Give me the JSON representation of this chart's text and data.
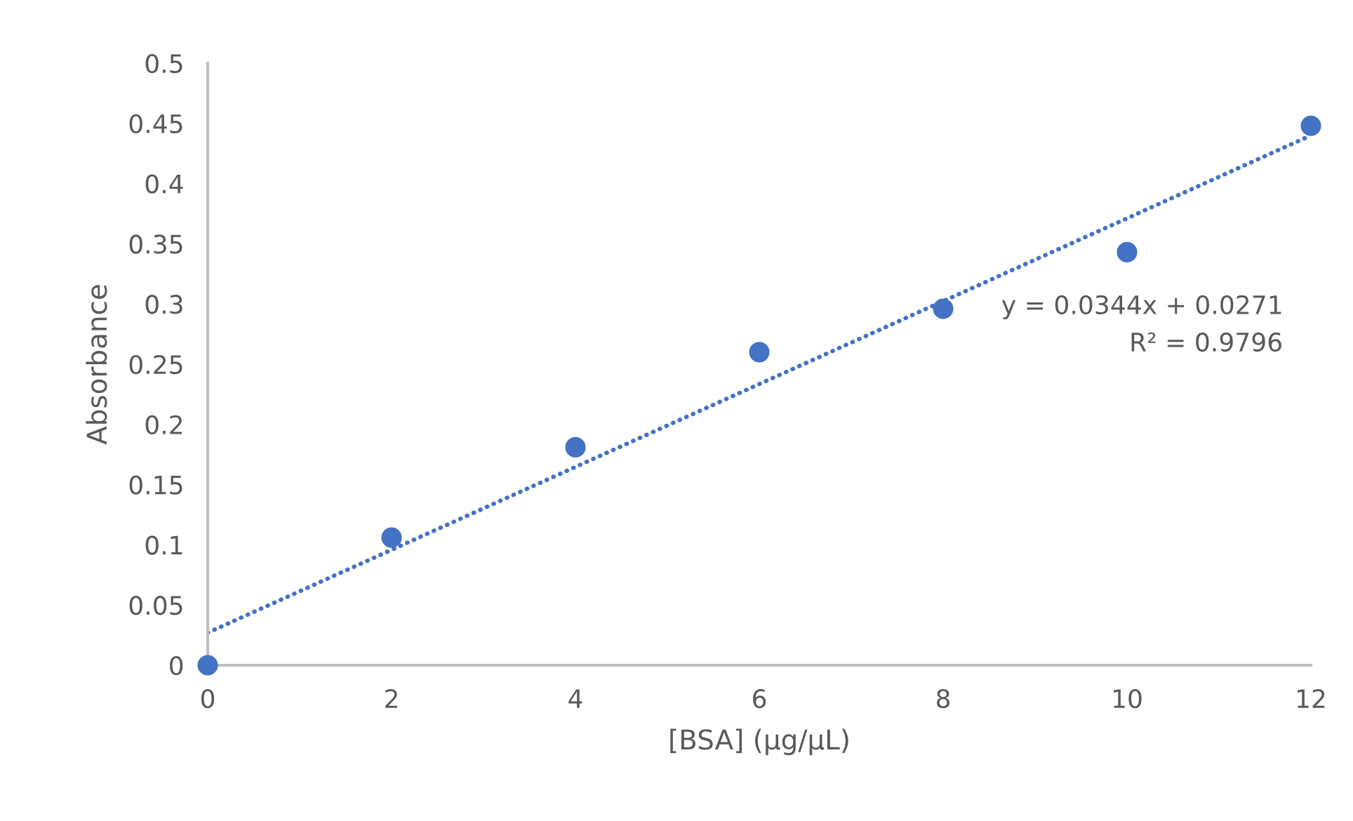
{
  "chart_data": {
    "type": "scatter",
    "xlabel": "[BSA] (μg/μL)",
    "ylabel": "Absorbance",
    "series": [
      {
        "color": "#4472c4",
        "marker": "circle",
        "x": [
          0,
          2,
          4,
          6,
          8,
          10,
          12
        ],
        "values": [
          0,
          0.106,
          0.181,
          0.26,
          0.296,
          0.343,
          0.448
        ]
      },
      {
        "type": "line",
        "color": "#4472c4",
        "line_style": "dotted",
        "marker": "none",
        "x": [
          0,
          12
        ],
        "values": [
          0.027,
          0.44
        ]
      }
    ],
    "annotations": [
      "y = 0.0344x + 0.0271",
      "R² = 0.9796"
    ],
    "xlim": [
      0,
      12
    ],
    "xticks": [
      0,
      2,
      4,
      6,
      8,
      10,
      12
    ],
    "ylim": [
      0,
      0.5
    ],
    "yticks": [
      0,
      0.05,
      0.1,
      0.15,
      0.2,
      0.25,
      0.3,
      0.35,
      0.4,
      0.45,
      0.5
    ],
    "grid": false,
    "legend": false
  }
}
